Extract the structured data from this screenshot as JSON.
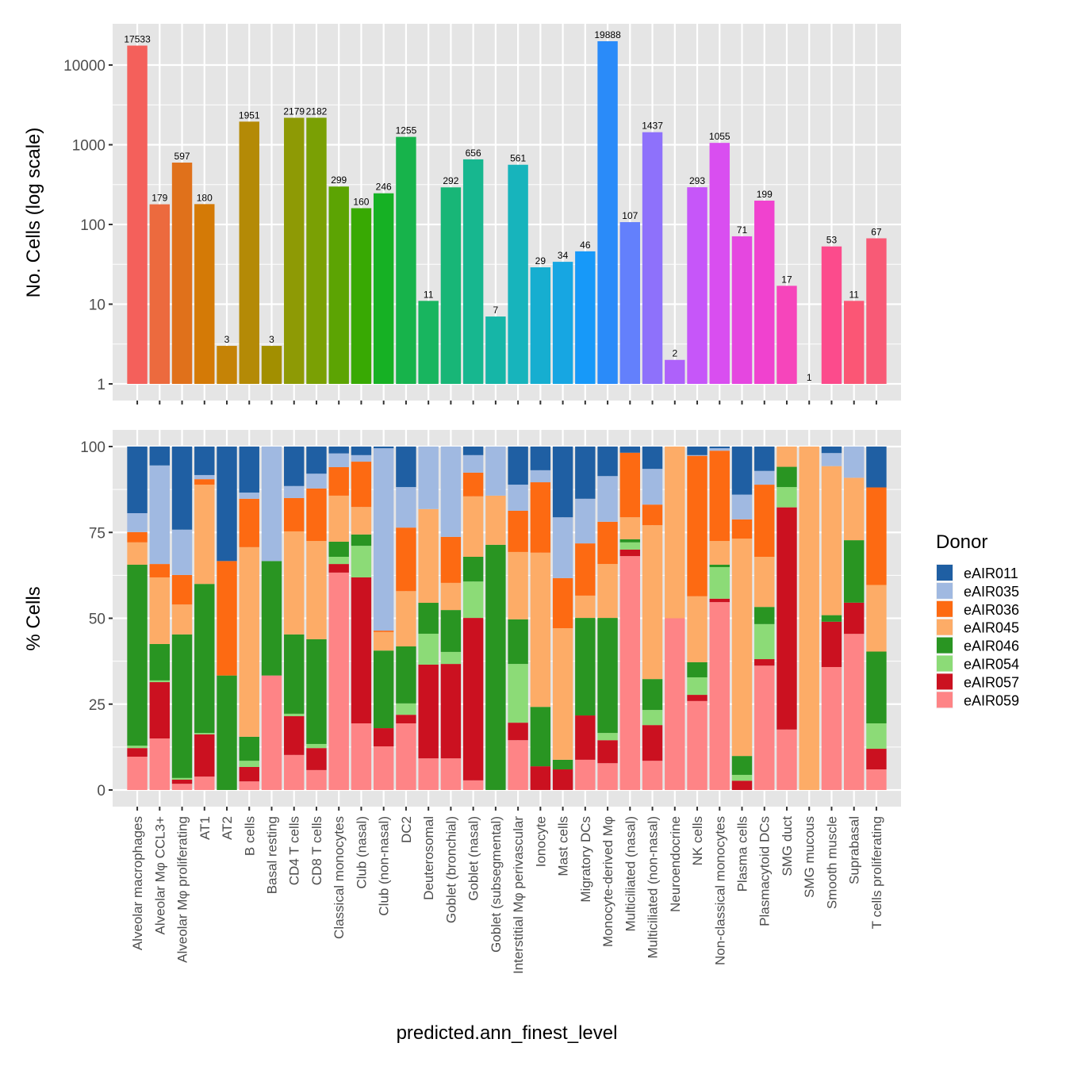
{
  "chart_data": [
    {
      "type": "bar",
      "panel": "top",
      "ylabel": "No. Cells (log scale)",
      "yscale": "log10",
      "ylim": [
        1,
        20000
      ],
      "yticks": [
        1,
        10,
        100,
        1000,
        10000
      ],
      "ytick_labels": [
        "1",
        "10",
        "100",
        "1000",
        "10000"
      ],
      "grid": true,
      "categories": [
        "Alveolar macrophages",
        "Alveolar Mφ CCL3+",
        "Alveolar Mφ proliferating",
        "AT1",
        "AT2",
        "B cells",
        "Basal resting",
        "CD4 T cells",
        "CD8 T cells",
        "Classical monocytes",
        "Club (nasal)",
        "Club (non-nasal)",
        "DC2",
        "Deuterosomal",
        "Goblet (bronchial)",
        "Goblet (nasal)",
        "Goblet (subsegmental)",
        "Interstitial Mφ perivascular",
        "Ionocyte",
        "Mast cells",
        "Migratory DCs",
        "Monocyte-derived Mφ",
        "Multiciliated (nasal)",
        "Multiciliated (non-nasal)",
        "Neuroendocrine",
        "NK cells",
        "Non-classical monocytes",
        "Plasma cells",
        "Plasmacytoid DCs",
        "SMG duct",
        "SMG mucous",
        "Smooth muscle",
        "Suprabasal",
        "T cells proliferating"
      ],
      "values": [
        17533,
        179,
        597,
        180,
        3,
        1951,
        3,
        2179,
        2182,
        299,
        160,
        246,
        1255,
        11,
        292,
        656,
        7,
        561,
        29,
        34,
        46,
        19888,
        107,
        1437,
        2,
        293,
        1055,
        71,
        199,
        17,
        1,
        53,
        11,
        67
      ],
      "data_labels": [
        "17533",
        "179",
        "597",
        "180",
        "3",
        "1951",
        "3",
        "2179",
        "2182",
        "299",
        "160",
        "246",
        "1255",
        "11",
        "292",
        "656",
        "7",
        "561",
        "29",
        "34",
        "46",
        "19888",
        "107",
        "1437",
        "2",
        "293",
        "1055",
        "71",
        "199",
        "17",
        "1",
        "53",
        "11",
        "67"
      ],
      "colors": [
        "#F4605B",
        "#EC6A3E",
        "#E0711B",
        "#D47A06",
        "#C58306",
        "#B48A06",
        "#A28F00",
        "#8E9A05",
        "#7AA004",
        "#5CA403",
        "#38A903",
        "#16B124",
        "#17B34B",
        "#18B55F",
        "#18B677",
        "#17B78F",
        "#16B6A7",
        "#17B4BC",
        "#16AED0",
        "#17A6E2",
        "#1799F9",
        "#2A8BF9",
        "#6380FC",
        "#8E71FB",
        "#AE61FA",
        "#C656F9",
        "#D94EF0",
        "#E547E0",
        "#F042CF",
        "#F645BB",
        "#FC44A3",
        "#FC4B8C",
        "#FB5675",
        "#F85A76"
      ]
    },
    {
      "type": "bar",
      "stacked": true,
      "panel": "bottom",
      "xlabel": "predicted.ann_finest_level",
      "ylabel": "% Cells",
      "ylim": [
        0,
        100
      ],
      "yticks": [
        0,
        25,
        50,
        75,
        100
      ],
      "ytick_labels": [
        "0",
        "25",
        "50",
        "75",
        "100"
      ],
      "grid": true,
      "legend": {
        "title": "Donor",
        "position": "right"
      },
      "categories": [
        "Alveolar macrophages",
        "Alveolar Mφ CCL3+",
        "Alveolar Mφ proliferating",
        "AT1",
        "AT2",
        "B cells",
        "Basal resting",
        "CD4 T cells",
        "CD8 T cells",
        "Classical monocytes",
        "Club (nasal)",
        "Club (non-nasal)",
        "DC2",
        "Deuterosomal",
        "Goblet (bronchial)",
        "Goblet (nasal)",
        "Goblet (subsegmental)",
        "Interstitial Mφ perivascular",
        "Ionocyte",
        "Mast cells",
        "Migratory DCs",
        "Monocyte-derived Mφ",
        "Multiciliated (nasal)",
        "Multiciliated (non-nasal)",
        "Neuroendocrine",
        "NK cells",
        "Non-classical monocytes",
        "Plasma cells",
        "Plasmacytoid DCs",
        "SMG duct",
        "SMG mucous",
        "Smooth muscle",
        "Suprabasal",
        "T cells proliferating"
      ],
      "series": [
        {
          "name": "eAIR011",
          "color": "#1F5FA3",
          "values": [
            19.4,
            5.5,
            24.2,
            8.3,
            33.3,
            13.4,
            0,
            11.5,
            7.9,
            2.0,
            2.5,
            0.5,
            11.8,
            0,
            0,
            2.5,
            0,
            11.1,
            6.9,
            20.6,
            15.2,
            8.6,
            1.8,
            6.5,
            0,
            2.5,
            0.5,
            14.0,
            7.1,
            0,
            0,
            1.9,
            0,
            11.9
          ]
        },
        {
          "name": "eAIR035",
          "color": "#A0B9E1",
          "values": [
            5.5,
            28.7,
            13.2,
            1.2,
            0,
            1.8,
            33.3,
            3.5,
            4.3,
            4.0,
            1.9,
            53.1,
            11.8,
            18.2,
            26.3,
            5.1,
            14.3,
            7.6,
            3.5,
            17.7,
            13.0,
            13.3,
            0,
            10.4,
            0,
            0.2,
            0.7,
            7.2,
            4.0,
            0,
            0,
            3.8,
            9.1,
            0
          ]
        },
        {
          "name": "eAIR036",
          "color": "#FD6A12",
          "values": [
            3.0,
            3.9,
            8.6,
            1.6,
            33.3,
            14.1,
            0,
            9.7,
            15.3,
            8.3,
            13.2,
            0.4,
            18.5,
            0,
            13.4,
            6.9,
            0,
            12.0,
            20.5,
            14.6,
            15.2,
            12.3,
            18.8,
            6.0,
            0,
            40.9,
            26.3,
            5.6,
            21.0,
            0,
            0,
            0,
            0,
            28.4
          ]
        },
        {
          "name": "eAIR045",
          "color": "#FDAC67",
          "values": [
            6.5,
            19.4,
            8.7,
            28.9,
            0,
            55.2,
            0,
            30.0,
            28.6,
            13.4,
            8.0,
            5.4,
            16.1,
            27.3,
            7.9,
            17.6,
            14.3,
            19.6,
            44.9,
            38.3,
            6.5,
            15.7,
            6.4,
            44.8,
            50.0,
            19.2,
            6.9,
            63.3,
            14.6,
            5.9,
            100,
            43.4,
            18.2,
            19.4
          ]
        },
        {
          "name": "eAIR046",
          "color": "#299522",
          "values": [
            52.7,
            10.6,
            41.8,
            43.4,
            33.3,
            7.0,
            33.3,
            23.1,
            30.5,
            4.4,
            3.3,
            22.6,
            16.6,
            9.0,
            12.2,
            7.2,
            71.4,
            13.0,
            17.3,
            2.8,
            28.4,
            33.5,
            0.9,
            9.0,
            0,
            4.4,
            0.7,
            5.5,
            5.0,
            5.9,
            0,
            1.9,
            18.2,
            20.9
          ]
        },
        {
          "name": "eAIR054",
          "color": "#8CDB77",
          "values": [
            0.7,
            0.5,
            0.5,
            0.4,
            0,
            1.8,
            0,
            0.7,
            1.2,
            2.1,
            9.2,
            0,
            3.3,
            9.0,
            3.5,
            10.6,
            0,
            17.1,
            0,
            0,
            0,
            2.1,
            2.1,
            4.4,
            0,
            5.1,
            9.2,
            1.7,
            10.2,
            5.9,
            0,
            0,
            0,
            7.4
          ]
        },
        {
          "name": "eAIR057",
          "color": "#CB1120",
          "values": [
            2.5,
            16.4,
            1.2,
            12.3,
            0,
            4.2,
            0,
            11.3,
            6.4,
            2.5,
            42.5,
            5.3,
            2.5,
            27.3,
            27.5,
            47.3,
            0,
            5.1,
            6.9,
            6.0,
            12.9,
            6.7,
            1.9,
            10.4,
            0,
            1.8,
            1.0,
            2.7,
            1.9,
            64.7,
            0,
            13.2,
            9.1,
            6.0
          ]
        },
        {
          "name": "eAIR059",
          "color": "#FE8486",
          "values": [
            9.7,
            15.0,
            1.8,
            3.9,
            0,
            2.5,
            33.3,
            10.2,
            5.8,
            63.3,
            19.4,
            12.7,
            19.4,
            9.2,
            9.2,
            2.8,
            0,
            14.5,
            0,
            0,
            8.8,
            7.8,
            68.1,
            8.5,
            50.0,
            25.9,
            54.7,
            0,
            36.2,
            17.6,
            0,
            35.8,
            45.5,
            6.0
          ]
        }
      ]
    }
  ],
  "colors": {
    "panel_bg": "#E5E5E5",
    "grid": "#FFFFFF",
    "tick": "#333333",
    "tick_text": "#4D4D4D"
  }
}
